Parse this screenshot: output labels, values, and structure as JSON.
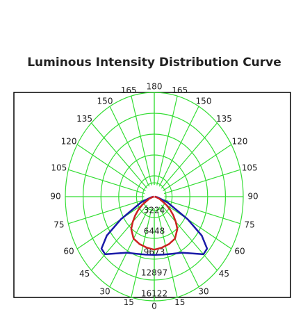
{
  "chart_data": {
    "type": "polar",
    "title": "Luminous Intensity Distribution Curve",
    "angles": [
      0,
      10,
      20,
      30,
      40,
      45,
      50,
      55,
      60,
      70,
      80,
      90
    ],
    "series": [
      {
        "color": "#1a1aa8",
        "values": [
          9000,
          9100,
          9400,
          10000,
          11500,
          12600,
          12500,
          10500,
          7000,
          2500,
          600,
          100
        ]
      },
      {
        "color": "#cc2222",
        "values": [
          8200,
          8000,
          7800,
          7500,
          6500,
          5500,
          4500,
          3500,
          2500,
          1000,
          300,
          50
        ]
      }
    ],
    "rlim": [
      0,
      16122
    ],
    "rticks": [
      3224,
      6448,
      9673,
      12897,
      16122
    ],
    "angle_ticks": [
      0,
      15,
      30,
      45,
      60,
      75,
      90,
      105,
      120,
      135,
      150,
      165,
      180
    ],
    "grid_color": "#33dd33"
  }
}
